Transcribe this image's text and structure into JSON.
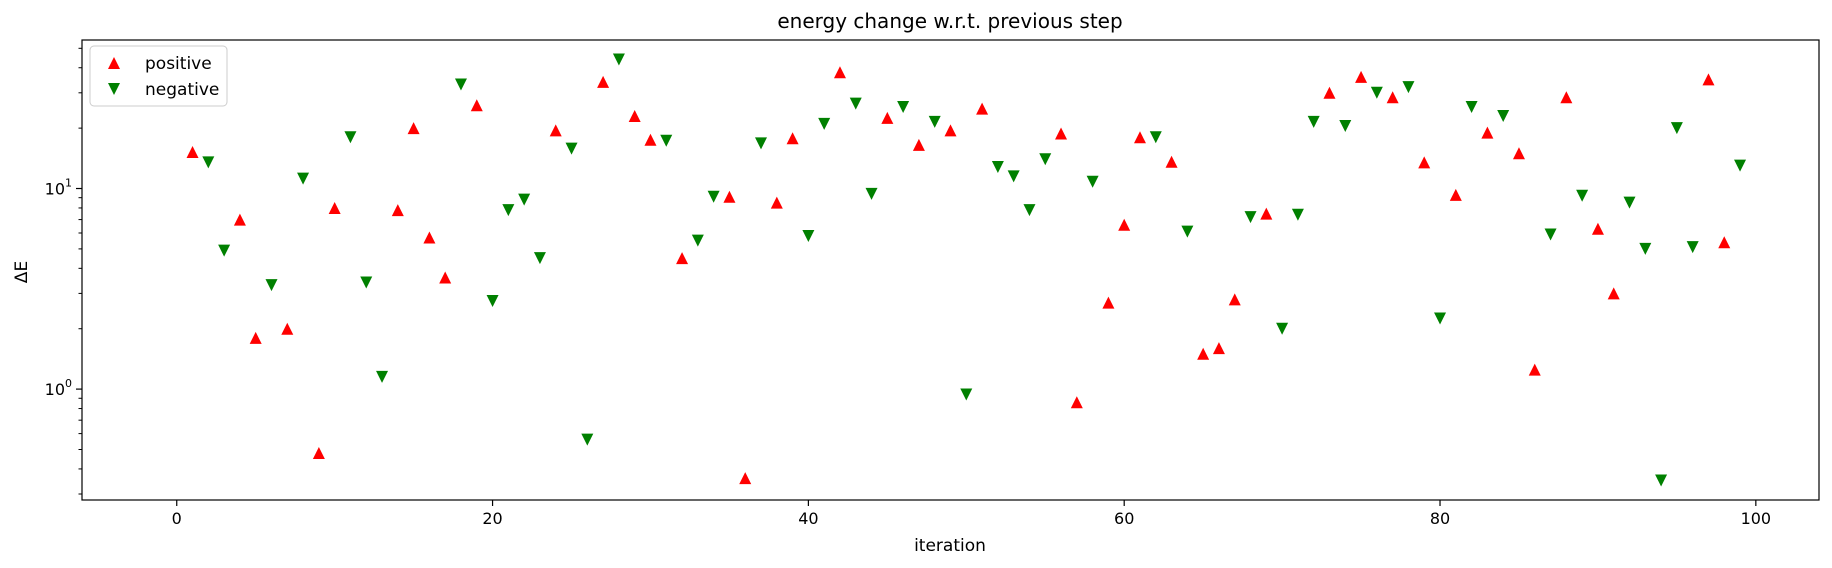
{
  "chart_data": {
    "type": "scatter",
    "title": "energy change w.r.t. previous step",
    "xlabel": "iteration",
    "ylabel": "ΔE",
    "xlim": [
      -6,
      104
    ],
    "ylim": [
      0.28,
      55
    ],
    "yscale": "log",
    "x_ticks": [
      0,
      20,
      40,
      60,
      80,
      100
    ],
    "y_ticks": [
      {
        "value": 1,
        "base": "10",
        "exp": "0"
      },
      {
        "value": 10,
        "base": "10",
        "exp": "1"
      }
    ],
    "grid": false,
    "legend_position": "top-left",
    "series": [
      {
        "name": "positive",
        "marker": "triangle-up",
        "color": "#ff0000",
        "points": [
          [
            1,
            15.2
          ],
          [
            4,
            7.0
          ],
          [
            5,
            1.8
          ],
          [
            7,
            2.0
          ],
          [
            9,
            0.48
          ],
          [
            10,
            8.0
          ],
          [
            14,
            7.8
          ],
          [
            15,
            20.0
          ],
          [
            16,
            5.7
          ],
          [
            17,
            3.6
          ],
          [
            19,
            26.0
          ],
          [
            24,
            19.5
          ],
          [
            27,
            34.0
          ],
          [
            29,
            23.0
          ],
          [
            30,
            17.5
          ],
          [
            32,
            4.5
          ],
          [
            35,
            9.1
          ],
          [
            36,
            0.36
          ],
          [
            38,
            8.5
          ],
          [
            39,
            17.8
          ],
          [
            42,
            38.0
          ],
          [
            45,
            22.5
          ],
          [
            47,
            16.5
          ],
          [
            49,
            19.5
          ],
          [
            51,
            25.0
          ],
          [
            56,
            18.8
          ],
          [
            57,
            0.86
          ],
          [
            59,
            2.7
          ],
          [
            60,
            6.6
          ],
          [
            61,
            18.0
          ],
          [
            63,
            13.6
          ],
          [
            65,
            1.5
          ],
          [
            66,
            1.6
          ],
          [
            67,
            2.8
          ],
          [
            69,
            7.5
          ],
          [
            73,
            30.0
          ],
          [
            75,
            36.0
          ],
          [
            77,
            28.5
          ],
          [
            79,
            13.5
          ],
          [
            81,
            9.3
          ],
          [
            83,
            19.0
          ],
          [
            85,
            15.0
          ],
          [
            86,
            1.25
          ],
          [
            88,
            28.5
          ],
          [
            90,
            6.3
          ],
          [
            91,
            3.0
          ],
          [
            97,
            35.0
          ],
          [
            98,
            5.4
          ]
        ]
      },
      {
        "name": "negative",
        "marker": "triangle-down",
        "color": "#008000",
        "points": [
          [
            2,
            13.5
          ],
          [
            3,
            4.9
          ],
          [
            6,
            3.3
          ],
          [
            8,
            11.2
          ],
          [
            11,
            18.0
          ],
          [
            12,
            3.4
          ],
          [
            13,
            1.15
          ],
          [
            18,
            33.0
          ],
          [
            20,
            2.75
          ],
          [
            21,
            7.8
          ],
          [
            22,
            8.8
          ],
          [
            23,
            4.5
          ],
          [
            25,
            15.8
          ],
          [
            26,
            0.56
          ],
          [
            28,
            44.0
          ],
          [
            31,
            17.3
          ],
          [
            33,
            5.5
          ],
          [
            34,
            9.1
          ],
          [
            37,
            16.8
          ],
          [
            40,
            5.8
          ],
          [
            41,
            21.0
          ],
          [
            43,
            26.5
          ],
          [
            44,
            9.4
          ],
          [
            46,
            25.5
          ],
          [
            48,
            21.5
          ],
          [
            50,
            0.94
          ],
          [
            52,
            12.8
          ],
          [
            53,
            11.5
          ],
          [
            54,
            7.8
          ],
          [
            55,
            14.0
          ],
          [
            58,
            10.8
          ],
          [
            62,
            18.0
          ],
          [
            64,
            6.1
          ],
          [
            68,
            7.2
          ],
          [
            70,
            2.0
          ],
          [
            71,
            7.4
          ],
          [
            72,
            21.5
          ],
          [
            74,
            20.5
          ],
          [
            76,
            30.0
          ],
          [
            78,
            32.0
          ],
          [
            80,
            2.25
          ],
          [
            82,
            25.5
          ],
          [
            84,
            23.0
          ],
          [
            87,
            5.9
          ],
          [
            89,
            9.2
          ],
          [
            92,
            8.5
          ],
          [
            93,
            5.0
          ],
          [
            94,
            0.35
          ],
          [
            95,
            20.0
          ],
          [
            96,
            5.1
          ],
          [
            99,
            13.0
          ]
        ]
      }
    ]
  }
}
